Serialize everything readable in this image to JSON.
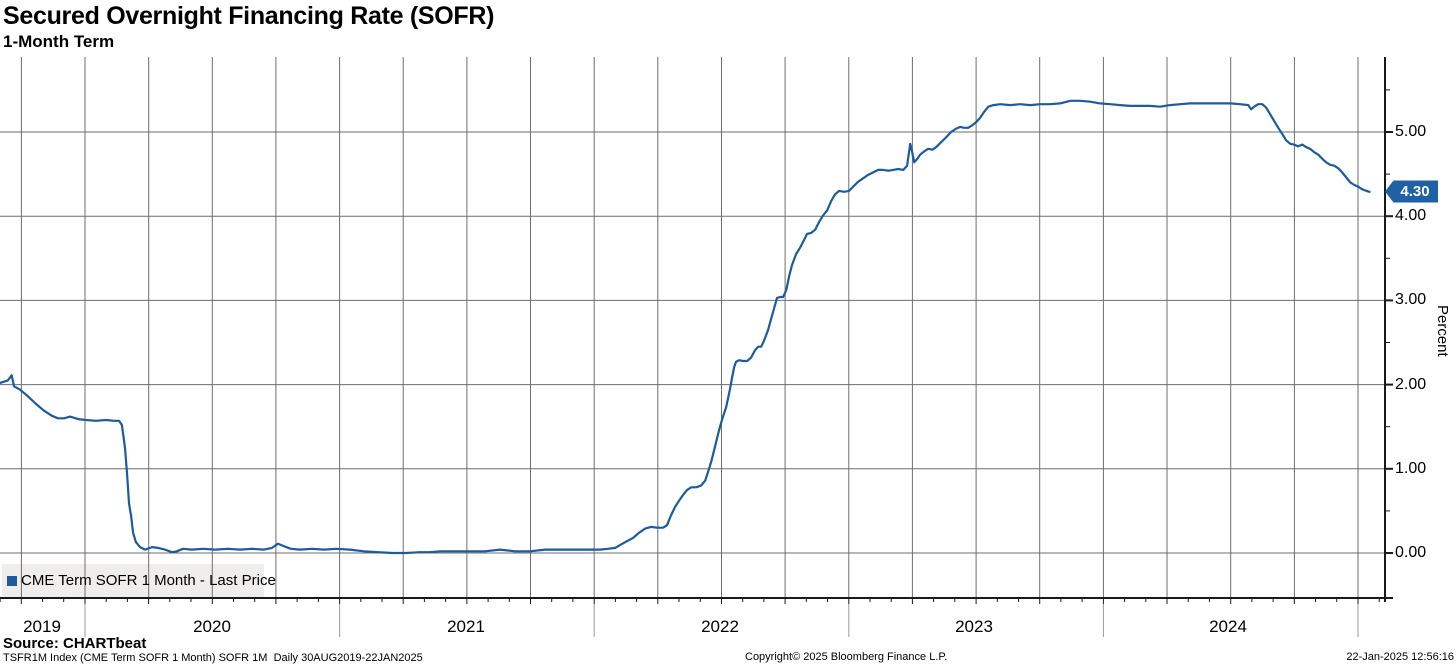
{
  "header": {
    "title": "Secured Overnight Financing Rate (SOFR)",
    "subtitle": "1-Month Term"
  },
  "legend": {
    "label": "CME Term SOFR 1 Month - Last Price",
    "marker_color": "#1c5b9c",
    "box_color": "#efeeec"
  },
  "price_tag": {
    "value": "4.30",
    "bg_color": "#2061a5",
    "border_color": "#123c6b",
    "text_color": "#ffffff"
  },
  "y_axis": {
    "label": "Percent",
    "ticks": [
      "5.00",
      "4.00",
      "3.00",
      "2.00",
      "1.00",
      "0.00"
    ]
  },
  "x_axis": {
    "years": [
      "2019",
      "2020",
      "2021",
      "2022",
      "2023",
      "2024"
    ]
  },
  "footer": {
    "source": "Source: CHARTbeat",
    "meta": "TSFR1M Index (CME Term SOFR 1 Month) SOFR 1M  Daily 30AUG2019-22JAN2025",
    "copyright": "Copyright© 2025 Bloomberg Finance L.P.",
    "timestamp": "22-Jan-2025 12:56:16"
  },
  "chart_data": {
    "type": "line",
    "title": "Secured Overnight Financing Rate (SOFR)",
    "subtitle": "1-Month Term",
    "xlabel": "",
    "ylabel": "Percent",
    "x_domain_years": [
      2019.66,
      2025.06
    ],
    "ylim": [
      -0.5,
      5.85
    ],
    "y_major_ticks": [
      0,
      1,
      2,
      3,
      4,
      5
    ],
    "grid": "quarterly vertical lines, 1.0 horizontal lines",
    "legend_position": "bottom-left",
    "last_price": 4.3,
    "series": [
      {
        "name": "CME Term SOFR 1 Month - Last Price",
        "color": "#1c5b9c",
        "points": [
          [
            2019.666,
            2.02
          ],
          [
            2019.697,
            2.05
          ],
          [
            2019.712,
            2.11
          ],
          [
            2019.721,
            1.98
          ],
          [
            2019.745,
            1.94
          ],
          [
            2019.776,
            1.86
          ],
          [
            2019.808,
            1.77
          ],
          [
            2019.839,
            1.69
          ],
          [
            2019.87,
            1.63
          ],
          [
            2019.894,
            1.6
          ],
          [
            2019.918,
            1.6
          ],
          [
            2019.941,
            1.62
          ],
          [
            2019.973,
            1.59
          ],
          [
            2020.004,
            1.58
          ],
          [
            2020.043,
            1.57
          ],
          [
            2020.082,
            1.58
          ],
          [
            2020.114,
            1.57
          ],
          [
            2020.134,
            1.57
          ],
          [
            2020.145,
            1.52
          ],
          [
            2020.157,
            1.25
          ],
          [
            2020.165,
            0.95
          ],
          [
            2020.173,
            0.59
          ],
          [
            2020.181,
            0.44
          ],
          [
            2020.189,
            0.24
          ],
          [
            2020.2,
            0.13
          ],
          [
            2020.216,
            0.07
          ],
          [
            2020.236,
            0.04
          ],
          [
            2020.263,
            0.07
          ],
          [
            2020.287,
            0.06
          ],
          [
            2020.314,
            0.04
          ],
          [
            2020.342,
            0.01
          ],
          [
            2020.361,
            0.02
          ],
          [
            2020.385,
            0.05
          ],
          [
            2020.42,
            0.04
          ],
          [
            2020.464,
            0.05
          ],
          [
            2020.511,
            0.04
          ],
          [
            2020.562,
            0.05
          ],
          [
            2020.609,
            0.04
          ],
          [
            2020.656,
            0.05
          ],
          [
            2020.703,
            0.04
          ],
          [
            2020.734,
            0.06
          ],
          [
            2020.758,
            0.11
          ],
          [
            2020.782,
            0.08
          ],
          [
            2020.809,
            0.05
          ],
          [
            2020.844,
            0.04
          ],
          [
            2020.892,
            0.05
          ],
          [
            2020.939,
            0.04
          ],
          [
            2020.986,
            0.05
          ],
          [
            2021.041,
            0.04
          ],
          [
            2021.096,
            0.02
          ],
          [
            2021.151,
            0.01
          ],
          [
            2021.206,
            0.0
          ],
          [
            2021.261,
            0.0
          ],
          [
            2021.316,
            0.01
          ],
          [
            2021.355,
            0.01
          ],
          [
            2021.394,
            0.02
          ],
          [
            2021.453,
            0.02
          ],
          [
            2021.512,
            0.02
          ],
          [
            2021.571,
            0.02
          ],
          [
            2021.63,
            0.04
          ],
          [
            2021.689,
            0.02
          ],
          [
            2021.748,
            0.02
          ],
          [
            2021.807,
            0.04
          ],
          [
            2021.866,
            0.04
          ],
          [
            2021.925,
            0.04
          ],
          [
            2021.984,
            0.04
          ],
          [
            2022.023,
            0.04
          ],
          [
            2022.054,
            0.05
          ],
          [
            2022.082,
            0.06
          ],
          [
            2022.105,
            0.1
          ],
          [
            2022.129,
            0.14
          ],
          [
            2022.153,
            0.18
          ],
          [
            2022.176,
            0.24
          ],
          [
            2022.2,
            0.29
          ],
          [
            2022.223,
            0.31
          ],
          [
            2022.247,
            0.3
          ],
          [
            2022.271,
            0.3
          ],
          [
            2022.286,
            0.33
          ],
          [
            2022.302,
            0.45
          ],
          [
            2022.318,
            0.55
          ],
          [
            2022.333,
            0.62
          ],
          [
            2022.349,
            0.69
          ],
          [
            2022.365,
            0.75
          ],
          [
            2022.381,
            0.78
          ],
          [
            2022.4,
            0.78
          ],
          [
            2022.42,
            0.8
          ],
          [
            2022.436,
            0.86
          ],
          [
            2022.447,
            0.96
          ],
          [
            2022.459,
            1.08
          ],
          [
            2022.471,
            1.22
          ],
          [
            2022.483,
            1.37
          ],
          [
            2022.494,
            1.5
          ],
          [
            2022.506,
            1.62
          ],
          [
            2022.518,
            1.73
          ],
          [
            2022.526,
            1.84
          ],
          [
            2022.534,
            1.96
          ],
          [
            2022.542,
            2.09
          ],
          [
            2022.55,
            2.21
          ],
          [
            2022.557,
            2.27
          ],
          [
            2022.569,
            2.29
          ],
          [
            2022.585,
            2.28
          ],
          [
            2022.601,
            2.28
          ],
          [
            2022.616,
            2.32
          ],
          [
            2022.632,
            2.41
          ],
          [
            2022.644,
            2.45
          ],
          [
            2022.656,
            2.45
          ],
          [
            2022.667,
            2.52
          ],
          [
            2022.683,
            2.65
          ],
          [
            2022.695,
            2.78
          ],
          [
            2022.707,
            2.91
          ],
          [
            2022.718,
            3.03
          ],
          [
            2022.73,
            3.04
          ],
          [
            2022.742,
            3.04
          ],
          [
            2022.754,
            3.12
          ],
          [
            2022.766,
            3.29
          ],
          [
            2022.777,
            3.42
          ],
          [
            2022.793,
            3.55
          ],
          [
            2022.809,
            3.63
          ],
          [
            2022.825,
            3.72
          ],
          [
            2022.836,
            3.79
          ],
          [
            2022.852,
            3.8
          ],
          [
            2022.868,
            3.84
          ],
          [
            2022.883,
            3.93
          ],
          [
            2022.899,
            4.01
          ],
          [
            2022.915,
            4.07
          ],
          [
            2022.931,
            4.18
          ],
          [
            2022.946,
            4.26
          ],
          [
            2022.962,
            4.3
          ],
          [
            2022.982,
            4.29
          ],
          [
            2023.001,
            4.3
          ],
          [
            2023.017,
            4.35
          ],
          [
            2023.037,
            4.41
          ],
          [
            2023.056,
            4.45
          ],
          [
            2023.076,
            4.49
          ],
          [
            2023.096,
            4.52
          ],
          [
            2023.115,
            4.55
          ],
          [
            2023.135,
            4.55
          ],
          [
            2023.155,
            4.54
          ],
          [
            2023.174,
            4.55
          ],
          [
            2023.194,
            4.56
          ],
          [
            2023.214,
            4.55
          ],
          [
            2023.229,
            4.6
          ],
          [
            2023.241,
            4.86
          ],
          [
            2023.249,
            4.76
          ],
          [
            2023.257,
            4.64
          ],
          [
            2023.269,
            4.68
          ],
          [
            2023.28,
            4.73
          ],
          [
            2023.296,
            4.77
          ],
          [
            2023.312,
            4.8
          ],
          [
            2023.328,
            4.79
          ],
          [
            2023.343,
            4.82
          ],
          [
            2023.363,
            4.88
          ],
          [
            2023.383,
            4.94
          ],
          [
            2023.402,
            5.0
          ],
          [
            2023.422,
            5.04
          ],
          [
            2023.438,
            5.06
          ],
          [
            2023.453,
            5.05
          ],
          [
            2023.469,
            5.05
          ],
          [
            2023.485,
            5.08
          ],
          [
            2023.501,
            5.12
          ],
          [
            2023.516,
            5.17
          ],
          [
            2023.532,
            5.24
          ],
          [
            2023.548,
            5.3
          ],
          [
            2023.568,
            5.32
          ],
          [
            2023.595,
            5.33
          ],
          [
            2023.634,
            5.32
          ],
          [
            2023.673,
            5.33
          ],
          [
            2023.713,
            5.32
          ],
          [
            2023.752,
            5.33
          ],
          [
            2023.791,
            5.33
          ],
          [
            2023.83,
            5.34
          ],
          [
            2023.87,
            5.37
          ],
          [
            2023.909,
            5.37
          ],
          [
            2023.948,
            5.36
          ],
          [
            2023.987,
            5.34
          ],
          [
            2024.027,
            5.33
          ],
          [
            2024.066,
            5.32
          ],
          [
            2024.105,
            5.31
          ],
          [
            2024.144,
            5.31
          ],
          [
            2024.184,
            5.31
          ],
          [
            2024.223,
            5.3
          ],
          [
            2024.262,
            5.32
          ],
          [
            2024.302,
            5.33
          ],
          [
            2024.341,
            5.34
          ],
          [
            2024.38,
            5.34
          ],
          [
            2024.419,
            5.34
          ],
          [
            2024.459,
            5.34
          ],
          [
            2024.498,
            5.34
          ],
          [
            2024.537,
            5.33
          ],
          [
            2024.569,
            5.32
          ],
          [
            2024.58,
            5.27
          ],
          [
            2024.592,
            5.3
          ],
          [
            2024.608,
            5.33
          ],
          [
            2024.624,
            5.33
          ],
          [
            2024.639,
            5.29
          ],
          [
            2024.655,
            5.21
          ],
          [
            2024.671,
            5.13
          ],
          [
            2024.687,
            5.05
          ],
          [
            2024.702,
            4.98
          ],
          [
            2024.718,
            4.9
          ],
          [
            2024.734,
            4.86
          ],
          [
            2024.749,
            4.85
          ],
          [
            2024.765,
            4.83
          ],
          [
            2024.781,
            4.85
          ],
          [
            2024.797,
            4.82
          ],
          [
            2024.812,
            4.8
          ],
          [
            2024.828,
            4.76
          ],
          [
            2024.844,
            4.73
          ],
          [
            2024.86,
            4.68
          ],
          [
            2024.875,
            4.64
          ],
          [
            2024.891,
            4.61
          ],
          [
            2024.907,
            4.6
          ],
          [
            2024.922,
            4.57
          ],
          [
            2024.938,
            4.52
          ],
          [
            2024.954,
            4.46
          ],
          [
            2024.97,
            4.4
          ],
          [
            2024.986,
            4.37
          ],
          [
            2025.001,
            4.35
          ],
          [
            2025.017,
            4.32
          ],
          [
            2025.033,
            4.3
          ],
          [
            2025.045,
            4.29
          ]
        ]
      }
    ]
  }
}
